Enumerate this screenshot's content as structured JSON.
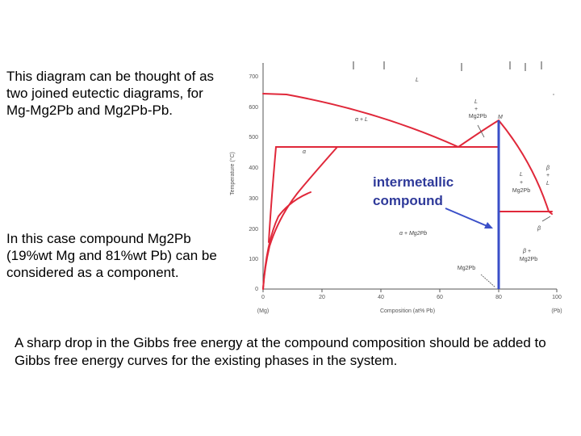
{
  "text_blocks": {
    "top_note": "This diagram can be thought of as two joined eutectic diagrams, for Mg-Mg2Pb and Mg2Pb-Pb.",
    "middle_note": "In this case compound Mg2Pb (19%wt Mg and 81%wt Pb) can be considered as a component.",
    "bottom_note": "A sharp drop in the Gibbs free energy at the compound composition should be added to Gibbs free energy curves for the existing phases in the system."
  },
  "diagram": {
    "y_axis_label": "Temperature (°C)",
    "y_ticks": [
      "0",
      "100",
      "200",
      "300",
      "400",
      "500",
      "600",
      "700"
    ],
    "x_axis_label": "Composition (at% Pb)",
    "x_ticks": [
      "0",
      "20",
      "40",
      "60",
      "80",
      "100"
    ],
    "x_end_left": "(Mg)",
    "x_end_right": "(Pb)",
    "regions": {
      "liquid": "L",
      "alpha": "α",
      "alpha_plus_l": "α + L",
      "alpha_plus_mg2pb": "α + Mg2Pb",
      "l_plus_mg2pb_upper": [
        "L",
        "+",
        "Mg2Pb"
      ],
      "l_plus_mg2pb_lower": [
        "L",
        "+",
        "Mg2Pb"
      ],
      "beta_plus_mg2pb": [
        "β +",
        "Mg2Pb"
      ],
      "beta": "β",
      "beta_plus_l": [
        "β",
        "+",
        "L"
      ],
      "point_m": "M",
      "compound_label": "Mg2Pb"
    },
    "callout": [
      "intermetallic",
      "compound"
    ],
    "colors": {
      "phase_lines": "#e0283a",
      "compound_line": "#3a4fc8",
      "callout_text": "#2f3a9a",
      "axis": "#555555"
    }
  }
}
